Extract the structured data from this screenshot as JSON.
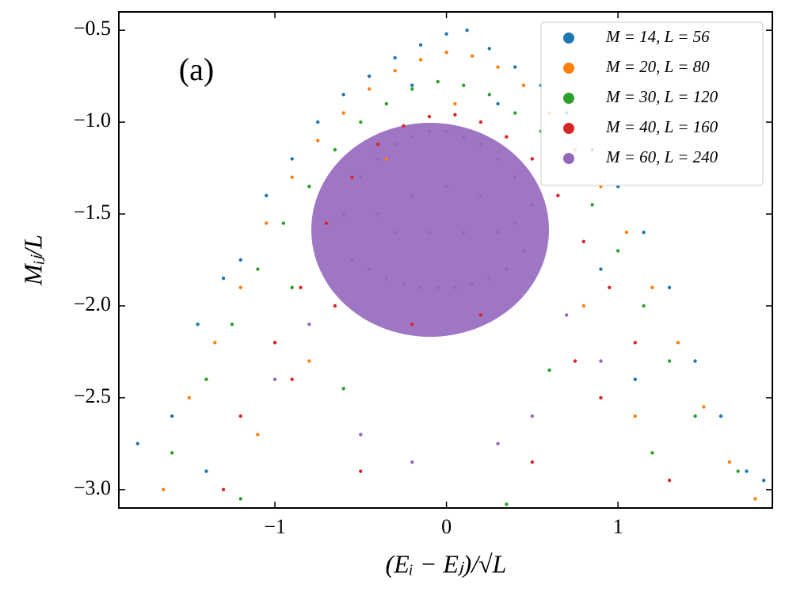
{
  "chart_data": {
    "type": "scatter",
    "xlabel": "(Eᵢ − Eⱼ)/√L",
    "ylabel": "Mᵢⱼ/L",
    "annotation": "(a)",
    "xlim": [
      -1.91,
      1.9
    ],
    "ylim": [
      -3.1,
      -0.4
    ],
    "xticks": [
      {
        "value": -1,
        "label": "−1"
      },
      0,
      1
    ],
    "yticks": [
      {
        "value": -0.5,
        "label": "−0.5"
      },
      {
        "value": -1.0,
        "label": "−1.0"
      },
      {
        "value": -1.5,
        "label": "−1.5"
      },
      {
        "value": -2.0,
        "label": "−2.0"
      },
      {
        "value": -2.5,
        "label": "−2.5"
      },
      {
        "value": -3.0,
        "label": "−3.0"
      }
    ],
    "legend": "upper right",
    "series": [
      {
        "name": "M = 14, L = 56",
        "color": "#1f77b4",
        "x": [
          -1.8,
          -1.6,
          -1.45,
          -1.3,
          -1.2,
          -1.05,
          -0.9,
          -0.75,
          -0.6,
          -0.45,
          -0.3,
          -0.15,
          0,
          0.12,
          0.25,
          0.4,
          0.55,
          0.7,
          0.85,
          1.0,
          1.15,
          1.3,
          1.45,
          1.6,
          1.75,
          1.85,
          -1.0,
          -0.5,
          0.5,
          1.1,
          -1.4,
          0.9,
          -0.2,
          0.3
        ],
        "values": [
          -2.75,
          -2.6,
          -2.1,
          -1.85,
          -1.75,
          -1.4,
          -1.2,
          -1.0,
          -0.85,
          -0.75,
          -0.65,
          -0.58,
          -0.52,
          -0.5,
          -0.6,
          -0.7,
          -0.8,
          -0.95,
          -1.15,
          -1.35,
          -1.6,
          -1.9,
          -2.3,
          -2.6,
          -2.9,
          -2.95,
          -2.2,
          -1.3,
          -1.2,
          -2.4,
          -2.9,
          -1.8,
          -0.8,
          -0.9
        ]
      },
      {
        "name": "M = 20, L = 80",
        "color": "#ff7f0e",
        "x": [
          -1.65,
          -1.5,
          -1.35,
          -1.2,
          -1.05,
          -0.9,
          -0.75,
          -0.6,
          -0.45,
          -0.3,
          -0.15,
          0,
          0.15,
          0.3,
          0.45,
          0.6,
          0.75,
          0.9,
          1.05,
          1.2,
          1.35,
          1.5,
          1.65,
          1.8,
          -0.8,
          0.8,
          -1.1,
          1.1,
          0.05,
          -0.35
        ],
        "values": [
          -3.0,
          -2.5,
          -2.2,
          -1.9,
          -1.55,
          -1.3,
          -1.1,
          -0.95,
          -0.82,
          -0.72,
          -0.66,
          -0.62,
          -0.64,
          -0.7,
          -0.8,
          -0.95,
          -1.15,
          -1.35,
          -1.6,
          -1.9,
          -2.2,
          -2.55,
          -2.85,
          -3.05,
          -2.3,
          -2.0,
          -2.7,
          -2.6,
          -0.9,
          -1.2
        ]
      },
      {
        "name": "M = 30, L = 120",
        "color": "#2ca02c",
        "x": [
          -1.6,
          -1.4,
          -1.25,
          -1.1,
          -0.95,
          -0.8,
          -0.65,
          -0.5,
          -0.35,
          -0.2,
          -0.05,
          0.1,
          0.25,
          0.4,
          0.55,
          0.7,
          0.85,
          1.0,
          1.15,
          1.3,
          1.45,
          1.7,
          -1.2,
          1.2,
          -0.6,
          0.6,
          0.35,
          -0.9
        ],
        "values": [
          -2.8,
          -2.4,
          -2.1,
          -1.8,
          -1.55,
          -1.35,
          -1.15,
          -1.0,
          -0.9,
          -0.82,
          -0.78,
          -0.8,
          -0.85,
          -0.95,
          -1.05,
          -1.2,
          -1.45,
          -1.7,
          -2.0,
          -2.3,
          -2.6,
          -2.9,
          -3.05,
          -2.8,
          -2.45,
          -2.35,
          -3.08,
          -1.9
        ]
      },
      {
        "name": "M = 40, L = 160",
        "color": "#d62728",
        "x": [
          -1.2,
          -1.0,
          -0.85,
          -0.7,
          -0.55,
          -0.4,
          -0.25,
          -0.1,
          0.05,
          0.2,
          0.35,
          0.5,
          0.65,
          0.8,
          0.95,
          1.1,
          -0.9,
          0.9,
          -0.5,
          0.5,
          -0.2,
          0.2,
          -1.3,
          1.3,
          -0.65,
          0.75
        ],
        "values": [
          -2.6,
          -2.2,
          -1.9,
          -1.55,
          -1.3,
          -1.12,
          -1.02,
          -0.97,
          -0.96,
          -1.0,
          -1.08,
          -1.2,
          -1.4,
          -1.65,
          -1.9,
          -2.2,
          -2.4,
          -2.5,
          -2.9,
          -2.85,
          -2.1,
          -2.05,
          -3.0,
          -2.95,
          -2.0,
          -2.3
        ]
      },
      {
        "name": "M = 60, L = 240",
        "color": "#9467bd",
        "x": [
          -0.6,
          -0.5,
          -0.4,
          -0.3,
          -0.2,
          -0.1,
          0,
          0.1,
          0.2,
          0.3,
          0.4,
          0.5,
          -0.55,
          -0.45,
          -0.35,
          -0.25,
          -0.15,
          -0.05,
          0.05,
          0.15,
          0.25,
          0.35,
          0.45,
          -0.4,
          -0.2,
          0,
          0.2,
          0.4,
          -0.3,
          -0.1,
          0.1,
          0.3,
          -0.8,
          0.7,
          -1.0,
          0.9,
          -0.5,
          0.5,
          -0.2,
          0.3
        ],
        "values": [
          -1.5,
          -1.3,
          -1.2,
          -1.12,
          -1.08,
          -1.05,
          -1.05,
          -1.08,
          -1.12,
          -1.2,
          -1.3,
          -1.45,
          -1.75,
          -1.8,
          -1.85,
          -1.88,
          -1.9,
          -1.9,
          -1.9,
          -1.88,
          -1.85,
          -1.8,
          -1.7,
          -1.5,
          -1.4,
          -1.35,
          -1.4,
          -1.55,
          -1.6,
          -1.6,
          -1.6,
          -1.6,
          -2.1,
          -2.05,
          -2.4,
          -2.3,
          -2.7,
          -2.6,
          -2.85,
          -2.75
        ]
      }
    ]
  }
}
